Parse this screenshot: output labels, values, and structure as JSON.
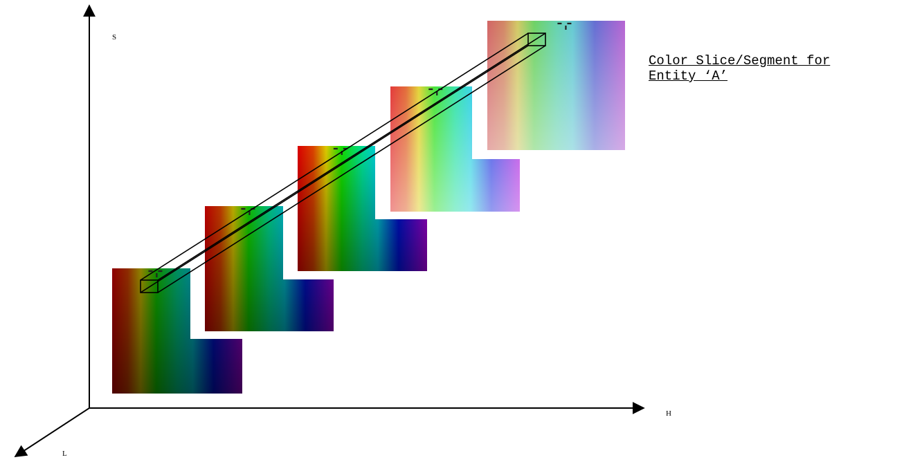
{
  "axes": {
    "vertical": "S",
    "horizontal": "H",
    "depth": "L"
  },
  "annotation": {
    "line1": "Color Slice/Segment for",
    "line2": "Entity ‘A’"
  },
  "slices": [
    {
      "brightness": 0.55,
      "saturation": 1.0
    },
    {
      "brightness": 0.72,
      "saturation": 1.0
    },
    {
      "brightness": 0.85,
      "saturation": 1.0
    },
    {
      "brightness": 1.0,
      "saturation": 0.75
    },
    {
      "brightness": 1.0,
      "saturation": 0.55
    }
  ],
  "colors": {
    "axis": "#000000",
    "outline": "#000000",
    "fade_target": "#ffffff"
  }
}
